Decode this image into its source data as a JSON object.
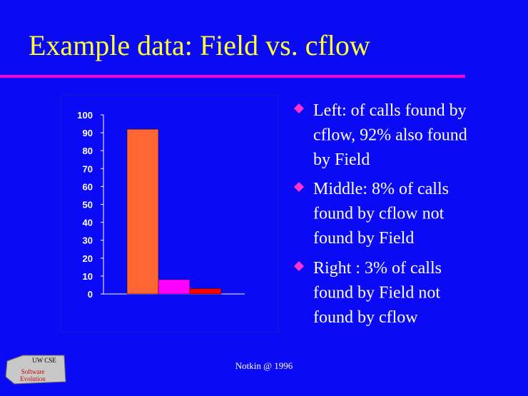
{
  "title": "Example data: Field vs. cflow",
  "bullets": [
    [
      "Left: of calls found by",
      "cflow, 92% also found",
      "by Field"
    ],
    [
      "Middle: 8% of calls",
      "found by cflow not",
      "found by Field"
    ],
    [
      "Right : 3% of calls",
      "found by Field not",
      "found by cflow"
    ]
  ],
  "footer": "Notkin @ 1996",
  "logo": {
    "top": "UW CSE",
    "lines": [
      "Software",
      "Evolution"
    ]
  },
  "chart_data": {
    "type": "bar",
    "values": [
      92,
      8,
      3
    ],
    "colors": [
      "#ff6633",
      "#ff00ff",
      "#ff0000"
    ],
    "ylim": [
      0,
      100
    ],
    "yticks": [
      0,
      10,
      20,
      30,
      40,
      50,
      60,
      70,
      80,
      90,
      100
    ],
    "grid": false
  }
}
